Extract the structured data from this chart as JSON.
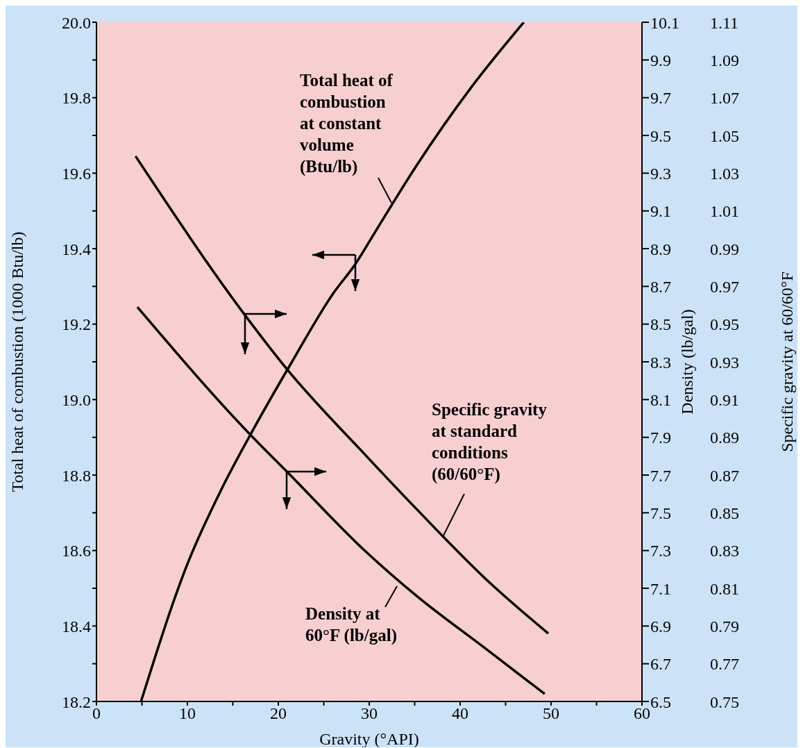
{
  "chart_data": {
    "type": "line",
    "xlabel": "Gravity (°API)",
    "ylabel": "Total heat of combustion (1000 Btu/lb)",
    "y2label": "Density (lb/gal)",
    "y3label": "Specific gravity at 60/60°F",
    "xlim": [
      0,
      60
    ],
    "xticks": [
      0,
      {
        "value": 5,
        "label": null
      },
      10,
      {
        "value": 15,
        "label": null
      },
      20,
      {
        "value": 25,
        "label": null
      },
      30,
      {
        "value": 35,
        "label": null
      },
      40,
      {
        "value": 45,
        "label": null
      },
      50,
      {
        "value": 55,
        "label": null
      },
      60
    ],
    "ylim": [
      18.2,
      20.0
    ],
    "yticks": [
      18.2,
      {
        "value": 18.3,
        "label": null
      },
      18.4,
      {
        "value": 18.5,
        "label": null
      },
      18.6,
      {
        "value": 18.7,
        "label": null
      },
      18.8,
      {
        "value": 18.9,
        "label": null
      },
      {
        "value": 19.0,
        "label": "19.0"
      },
      {
        "value": 19.1,
        "label": null
      },
      19.2,
      {
        "value": 19.3,
        "label": null
      },
      19.4,
      {
        "value": 19.5,
        "label": null
      },
      19.6,
      {
        "value": 19.7,
        "label": null
      },
      19.8,
      {
        "value": 19.9,
        "label": null
      },
      {
        "value": 20.0,
        "label": "20.0"
      }
    ],
    "y2lim": [
      6.5,
      10.1
    ],
    "y2ticks": [
      6.5,
      6.7,
      6.9,
      7.1,
      7.3,
      7.5,
      7.7,
      7.9,
      8.1,
      8.3,
      8.5,
      8.7,
      8.9,
      9.1,
      9.3,
      9.5,
      9.7,
      9.9,
      10.1
    ],
    "y3lim": [
      0.75,
      1.11
    ],
    "y3ticks": [
      0.75,
      0.77,
      0.79,
      0.81,
      0.83,
      0.85,
      0.87,
      0.89,
      0.91,
      0.93,
      0.95,
      0.97,
      0.99,
      1.01,
      1.03,
      1.05,
      1.07,
      1.09,
      1.11
    ],
    "marker": "none",
    "line_style": "solid",
    "series": [
      {
        "name": "Total heat of\ncombustion\nat constant\nvolume\n(Btu/lb)",
        "color": "#000000",
        "x": [
          4.9,
          10.1,
          13.7,
          17.0,
          21.5,
          26.0,
          28.5,
          30.8,
          35.2,
          41.3,
          47.0
        ],
        "values": [
          18.2,
          18.57,
          18.76,
          18.91,
          19.1,
          19.28,
          19.36,
          19.45,
          19.62,
          19.83,
          20.0
        ]
      },
      {
        "name": "Specific gravity\nat standard\nconditions\n(60/60°F)",
        "axis": "y3",
        "color": "#000000",
        "x": [
          4.3,
          16.3,
          20.8,
          29.7,
          35.2,
          42.8,
          49.7
        ],
        "values": [
          1.039,
          0.955,
          0.927,
          0.88,
          0.852,
          0.815,
          0.786
        ]
      },
      {
        "name": "Density at\n60°F (lb/gal)",
        "axis": "y2",
        "color": "#000000",
        "x": [
          4.5,
          17.0,
          20.9,
          29.5,
          35.2,
          42.8,
          49.3
        ],
        "values": [
          8.59,
          7.91,
          7.72,
          7.3,
          7.06,
          6.78,
          6.54
        ]
      }
    ]
  }
}
